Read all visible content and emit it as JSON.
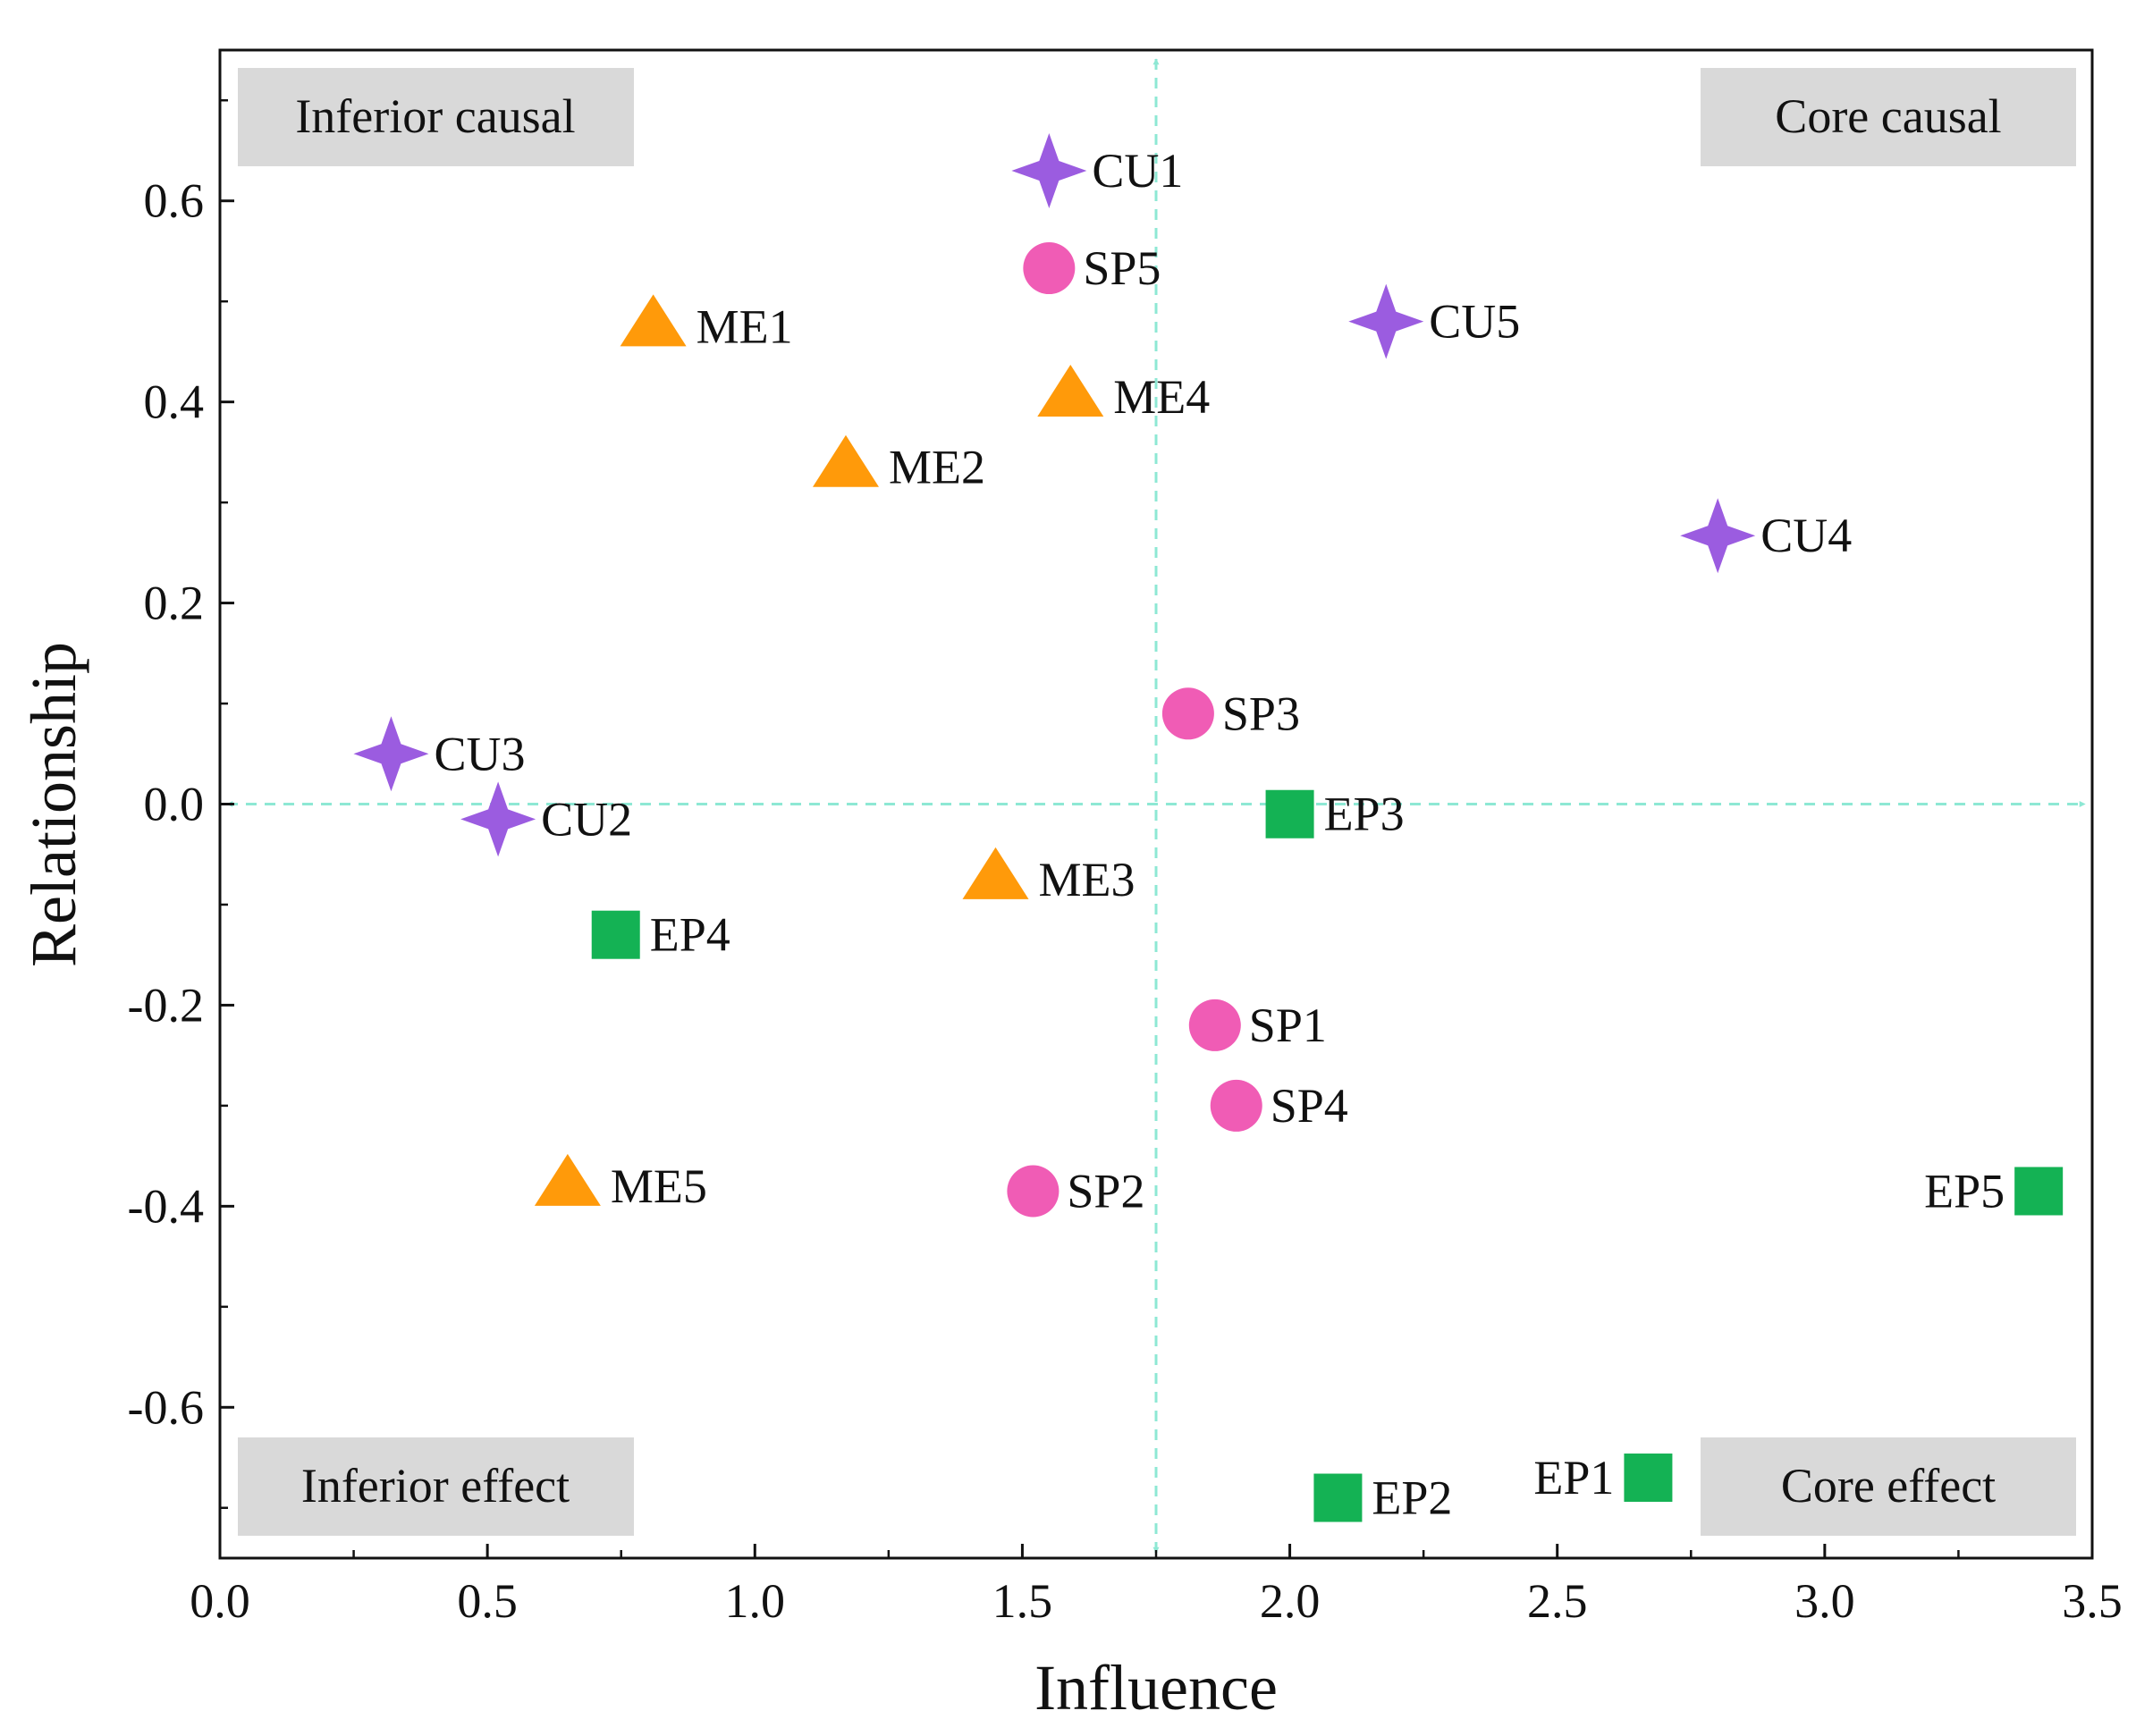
{
  "chart_data": {
    "type": "scatter",
    "title": "",
    "xlabel": "Influence",
    "ylabel": "Relationship",
    "xlim": [
      0.0,
      3.5
    ],
    "ylim": [
      -0.75,
      0.75
    ],
    "x_ticks": [
      "0.0",
      "0.5",
      "1.0",
      "1.5",
      "2.0",
      "2.5",
      "3.0",
      "3.5"
    ],
    "y_ticks": [
      "-0.6",
      "-0.4",
      "-0.2",
      "0.0",
      "0.2",
      "0.4",
      "0.6"
    ],
    "grid": false,
    "crosshair": {
      "x": 1.75,
      "y": 0.0,
      "color": "#8EE8D4"
    },
    "quadrants": [
      {
        "label": "Inferior causal",
        "position": "top-left"
      },
      {
        "label": "Core causal",
        "position": "top-right"
      },
      {
        "label": "Inferior effect",
        "position": "bottom-left"
      },
      {
        "label": "Core effect",
        "position": "bottom-right"
      }
    ],
    "series": [
      {
        "name": "CU",
        "marker": "star",
        "color": "#9B5CE0",
        "points": [
          {
            "label": "CU1",
            "x": 1.55,
            "y": 0.63
          },
          {
            "label": "CU2",
            "x": 0.52,
            "y": -0.015
          },
          {
            "label": "CU3",
            "x": 0.32,
            "y": 0.05
          },
          {
            "label": "CU4",
            "x": 2.8,
            "y": 0.267
          },
          {
            "label": "CU5",
            "x": 2.18,
            "y": 0.48
          }
        ]
      },
      {
        "name": "SP",
        "marker": "circle",
        "color": "#F05CB5",
        "points": [
          {
            "label": "SP1",
            "x": 1.86,
            "y": -0.22
          },
          {
            "label": "SP2",
            "x": 1.52,
            "y": -0.385
          },
          {
            "label": "SP3",
            "x": 1.81,
            "y": 0.09
          },
          {
            "label": "SP4",
            "x": 1.9,
            "y": -0.3
          },
          {
            "label": "SP5",
            "x": 1.55,
            "y": 0.533
          }
        ]
      },
      {
        "name": "ME",
        "marker": "triangle",
        "color": "#FF9A0A",
        "points": [
          {
            "label": "ME1",
            "x": 0.81,
            "y": 0.475
          },
          {
            "label": "ME2",
            "x": 1.17,
            "y": 0.335
          },
          {
            "label": "ME3",
            "x": 1.45,
            "y": -0.075
          },
          {
            "label": "ME4",
            "x": 1.59,
            "y": 0.405
          },
          {
            "label": "ME5",
            "x": 0.65,
            "y": -0.38
          }
        ]
      },
      {
        "name": "EP",
        "marker": "square",
        "color": "#14B254",
        "points": [
          {
            "label": "EP1",
            "x": 2.67,
            "y": -0.67
          },
          {
            "label": "EP2",
            "x": 2.09,
            "y": -0.69
          },
          {
            "label": "EP3",
            "x": 2.0,
            "y": -0.01
          },
          {
            "label": "EP4",
            "x": 0.74,
            "y": -0.13
          },
          {
            "label": "EP5",
            "x": 3.4,
            "y": -0.385
          }
        ]
      }
    ]
  }
}
